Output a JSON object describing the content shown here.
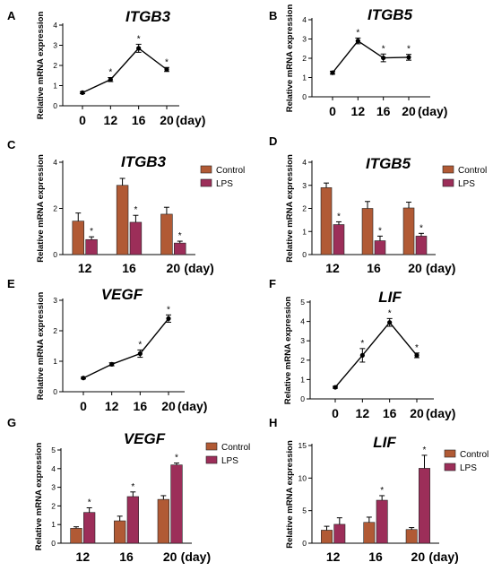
{
  "colors": {
    "control": "#b15a35",
    "lps": "#9c2e59",
    "line": "#000000"
  },
  "chart_data": [
    {
      "panel": "A",
      "type": "line",
      "title": "ITGB3",
      "ylabel": "Relative mRNA expression",
      "x": [
        "0",
        "12",
        "16",
        "20"
      ],
      "xunit": "(day)",
      "ylim": [
        0,
        4
      ],
      "yticks": [
        0,
        1,
        2,
        3,
        4
      ],
      "series": [
        {
          "values": [
            0.65,
            1.3,
            2.85,
            1.8
          ],
          "errors": [
            0.05,
            0.1,
            0.2,
            0.1
          ],
          "sig": [
            false,
            true,
            true,
            true
          ]
        }
      ]
    },
    {
      "panel": "B",
      "type": "line",
      "title": "ITGB5",
      "ylabel": "Relative mRNA expression",
      "x": [
        "0",
        "12",
        "16",
        "20"
      ],
      "xunit": "(day)",
      "ylim": [
        0,
        4
      ],
      "yticks": [
        0,
        1,
        2,
        3,
        4
      ],
      "series": [
        {
          "values": [
            1.25,
            2.9,
            2.02,
            2.05
          ],
          "errors": [
            0.08,
            0.15,
            0.2,
            0.15
          ],
          "sig": [
            false,
            true,
            true,
            true
          ]
        }
      ]
    },
    {
      "panel": "C",
      "type": "bar",
      "title": "ITGB3",
      "ylabel": "Relative mRNA expression",
      "categories": [
        "12",
        "16",
        "20"
      ],
      "xunit": "(day)",
      "ylim": [
        0,
        4
      ],
      "yticks": [
        0,
        2,
        4
      ],
      "series": [
        {
          "name": "Control",
          "values": [
            1.45,
            3.0,
            1.75
          ],
          "errors": [
            0.35,
            0.3,
            0.3
          ],
          "sig": [
            false,
            false,
            false
          ]
        },
        {
          "name": "LPS",
          "values": [
            0.65,
            1.4,
            0.5
          ],
          "errors": [
            0.12,
            0.3,
            0.08
          ],
          "sig": [
            true,
            true,
            true
          ]
        }
      ]
    },
    {
      "panel": "D",
      "type": "bar",
      "title": "ITGB5",
      "ylabel": "Relative mRNA expression",
      "categories": [
        "12",
        "16",
        "20"
      ],
      "xunit": "(day)",
      "ylim": [
        0,
        4
      ],
      "yticks": [
        0,
        1,
        2,
        3,
        4
      ],
      "series": [
        {
          "name": "Control",
          "values": [
            2.9,
            2.0,
            2.02
          ],
          "errors": [
            0.2,
            0.3,
            0.25
          ],
          "sig": [
            false,
            false,
            false
          ]
        },
        {
          "name": "LPS",
          "values": [
            1.3,
            0.6,
            0.8
          ],
          "errors": [
            0.12,
            0.2,
            0.12
          ],
          "sig": [
            true,
            true,
            true
          ]
        }
      ]
    },
    {
      "panel": "E",
      "type": "line",
      "title": "VEGF",
      "ylabel": "Relative mRNA expression",
      "x": [
        "0",
        "12",
        "16",
        "20"
      ],
      "xunit": "(day)",
      "ylim": [
        0,
        3
      ],
      "yticks": [
        0,
        1,
        2,
        3
      ],
      "series": [
        {
          "values": [
            0.45,
            0.9,
            1.25,
            2.4
          ],
          "errors": [
            0.03,
            0.05,
            0.12,
            0.12
          ],
          "sig": [
            false,
            false,
            true,
            true
          ]
        }
      ]
    },
    {
      "panel": "F",
      "type": "line",
      "title": "LIF",
      "ylabel": "Relative mRNA expression",
      "x": [
        "0",
        "12",
        "16",
        "20"
      ],
      "xunit": "(day)",
      "ylim": [
        0,
        5
      ],
      "yticks": [
        0,
        1,
        2,
        3,
        4,
        5
      ],
      "series": [
        {
          "values": [
            0.6,
            2.25,
            3.95,
            2.25
          ],
          "errors": [
            0.05,
            0.35,
            0.2,
            0.12
          ],
          "sig": [
            false,
            true,
            true,
            true
          ]
        }
      ]
    },
    {
      "panel": "G",
      "type": "bar",
      "title": "VEGF",
      "ylabel": "Relative mRNA expression",
      "categories": [
        "12",
        "16",
        "20"
      ],
      "xunit": "(day)",
      "ylim": [
        0,
        5
      ],
      "yticks": [
        0,
        1,
        2,
        3,
        4,
        5
      ],
      "series": [
        {
          "name": "Control",
          "values": [
            0.8,
            1.2,
            2.35
          ],
          "errors": [
            0.08,
            0.25,
            0.2
          ],
          "sig": [
            false,
            false,
            false
          ]
        },
        {
          "name": "LPS",
          "values": [
            1.65,
            2.5,
            4.2
          ],
          "errors": [
            0.25,
            0.25,
            0.1
          ],
          "sig": [
            true,
            true,
            true
          ]
        }
      ]
    },
    {
      "panel": "H",
      "type": "bar",
      "title": "LIF",
      "ylabel": "Relative mRNA expression",
      "categories": [
        "12",
        "16",
        "20"
      ],
      "xunit": "(day)",
      "ylim": [
        0,
        15
      ],
      "yticks": [
        0,
        5,
        10,
        15
      ],
      "series": [
        {
          "name": "Control",
          "values": [
            2.0,
            3.2,
            2.1
          ],
          "errors": [
            0.6,
            0.8,
            0.3
          ],
          "sig": [
            false,
            false,
            false
          ]
        },
        {
          "name": "LPS",
          "values": [
            2.9,
            6.6,
            11.5
          ],
          "errors": [
            1.0,
            0.7,
            2.0
          ],
          "sig": [
            false,
            true,
            true
          ]
        }
      ]
    }
  ]
}
